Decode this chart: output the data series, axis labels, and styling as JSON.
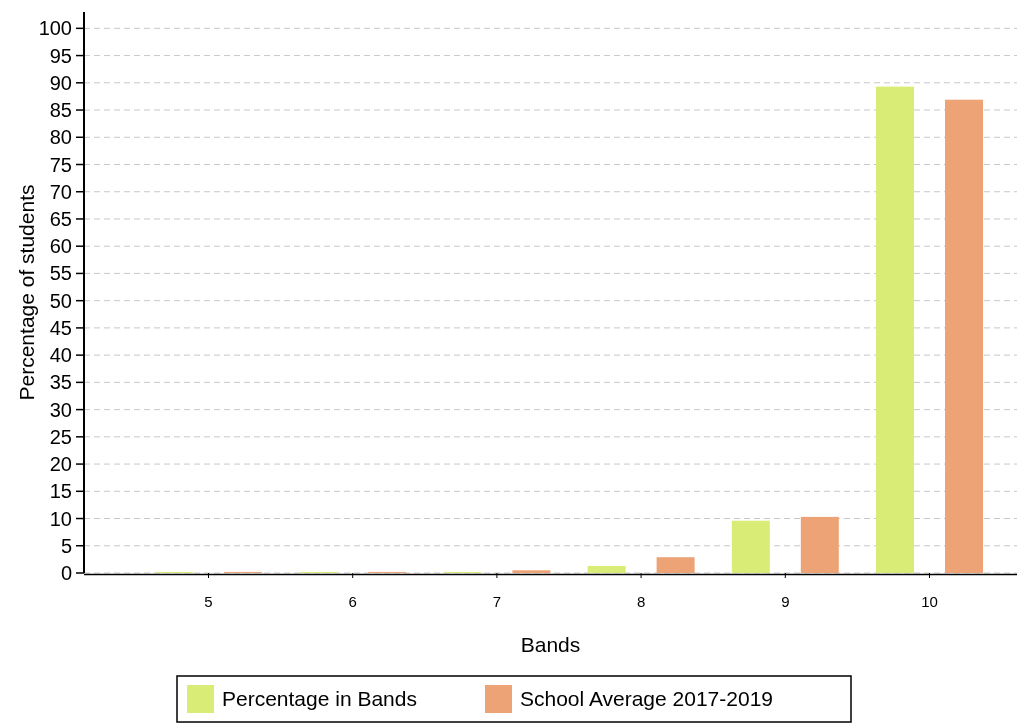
{
  "chart_data": {
    "type": "bar",
    "xlabel": "Bands",
    "ylabel": "Percentage of students",
    "categories": [
      "5",
      "6",
      "7",
      "8",
      "9",
      "10"
    ],
    "series": [
      {
        "name": "Percentage in Bands",
        "color": "#d9ed76",
        "values": [
          0.2,
          0.2,
          0.2,
          1.3,
          9.6,
          89.3
        ]
      },
      {
        "name": "School Average 2017-2019",
        "color": "#eea377",
        "values": [
          0.2,
          0.2,
          0.5,
          2.9,
          10.3,
          86.9
        ]
      }
    ],
    "ylim": [
      0,
      103
    ],
    "yticks": [
      0,
      5,
      10,
      15,
      20,
      25,
      30,
      35,
      40,
      45,
      50,
      55,
      60,
      65,
      70,
      75,
      80,
      85,
      90,
      95,
      100
    ],
    "grid": "y",
    "legend": "bottom"
  }
}
